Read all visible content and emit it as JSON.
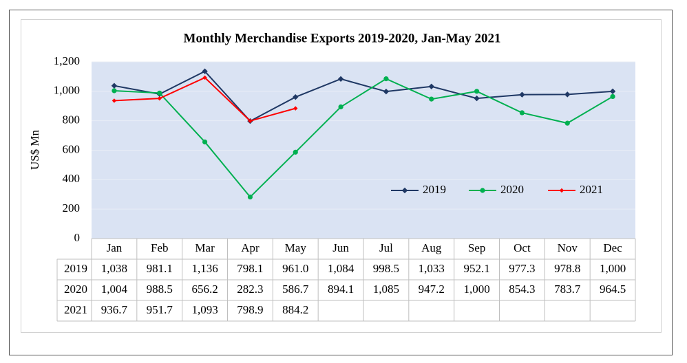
{
  "chart_data": {
    "type": "line",
    "title": "Monthly Merchandise Exports 2019-2020, Jan-May 2021",
    "y_label": "US$ Mn",
    "categories": [
      "Jan",
      "Feb",
      "Mar",
      "Apr",
      "May",
      "Jun",
      "Jul",
      "Aug",
      "Sep",
      "Oct",
      "Nov",
      "Dec"
    ],
    "series": [
      {
        "name": "2019",
        "color": "#1f3864",
        "marker": "diamond",
        "values": [
          1038,
          981.1,
          1136,
          798.1,
          961.0,
          1084,
          998.5,
          1033,
          952.1,
          977.3,
          978.8,
          1000
        ],
        "value_labels": [
          "1,038",
          "981.1",
          "1,136",
          "798.1",
          "961.0",
          "1,084",
          "998.5",
          "1,033",
          "952.1",
          "977.3",
          "978.8",
          "1,000"
        ]
      },
      {
        "name": "2020",
        "color": "#00b050",
        "marker": "circle",
        "values": [
          1004,
          988.5,
          656.2,
          282.3,
          586.7,
          894.1,
          1085,
          947.2,
          1000,
          854.3,
          783.7,
          964.5
        ],
        "value_labels": [
          "1,004",
          "988.5",
          "656.2",
          "282.3",
          "586.7",
          "894.1",
          "1,085",
          "947.2",
          "1,000",
          "854.3",
          "783.7",
          "964.5"
        ]
      },
      {
        "name": "2021",
        "color": "#ff0000",
        "marker": "small-diamond",
        "values": [
          936.7,
          951.7,
          1093,
          798.9,
          884.2,
          null,
          null,
          null,
          null,
          null,
          null,
          null
        ],
        "value_labels": [
          "936.7",
          "951.7",
          "1,093",
          "798.9",
          "884.2",
          null,
          null,
          null,
          null,
          null,
          null,
          null
        ]
      }
    ],
    "ylim": [
      0,
      1200
    ],
    "yticks": [
      0,
      200,
      400,
      600,
      800,
      {
        "value": 1000,
        "label": "1,000"
      },
      {
        "value": 1200,
        "label": "1,200"
      }
    ],
    "grid": true,
    "plot_background": "#dae3f3",
    "legend": "inside-right"
  }
}
